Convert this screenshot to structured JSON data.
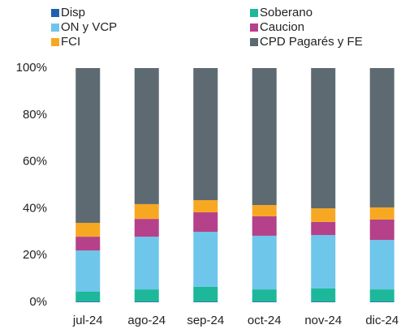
{
  "chart_data": {
    "type": "stacked_bar",
    "categories": [
      "jul-24",
      "ago-24",
      "sep-24",
      "oct-24",
      "nov-24",
      "dic-24"
    ],
    "series": [
      {
        "name": "Disp",
        "color": "#2160ad",
        "values": [
          0.3,
          0.3,
          0.3,
          0.3,
          0.3,
          0.3
        ]
      },
      {
        "name": "Soberano",
        "color": "#1db89a",
        "values": [
          4.2,
          5.2,
          6.3,
          5.2,
          5.6,
          5.2
        ]
      },
      {
        "name": "ON y VCP",
        "color": "#6ec6ea",
        "values": [
          17.6,
          22.5,
          23.5,
          22.9,
          22.8,
          21.1
        ]
      },
      {
        "name": "Caucion",
        "color": "#b5418a",
        "values": [
          5.9,
          7.6,
          8.3,
          8.3,
          5.6,
          8.7
        ]
      },
      {
        "name": "FCI",
        "color": "#f7a823",
        "values": [
          5.9,
          6.3,
          5.2,
          4.8,
          5.8,
          5.2
        ]
      },
      {
        "name": "CPD Pagarés y FE",
        "color": "#5e6a71",
        "values": [
          66.1,
          58.1,
          56.4,
          58.5,
          59.9,
          59.5
        ]
      }
    ],
    "ylim": [
      0,
      100
    ],
    "yticks": [
      {
        "value": 0,
        "label": "0%"
      },
      {
        "value": 20,
        "label": "20%"
      },
      {
        "value": 40,
        "label": "40%"
      },
      {
        "value": 60,
        "label": "60%"
      },
      {
        "value": 80,
        "label": "80%"
      },
      {
        "value": 100,
        "label": "100%"
      }
    ],
    "legend": "top"
  }
}
